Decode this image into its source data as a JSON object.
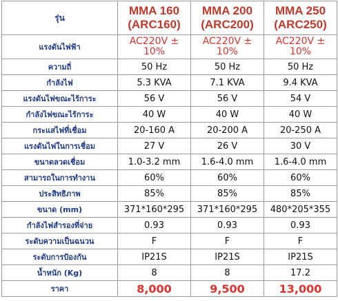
{
  "table": {
    "header": [
      "รุ่น",
      "MMA 160 (ARC160)",
      "MMA 200 (ARC200)",
      "MMA 250 (ARC250)"
    ],
    "rows": [
      [
        "แรงดันไฟฟ้า",
        "AC220V ± 10%",
        "AC220V ± 10%",
        "AC220V ± 10%"
      ],
      [
        "ความถี่",
        "50 Hz",
        "50 Hz",
        "50 Hz"
      ],
      [
        "กำลังไฟ",
        "5.3 KVA",
        "7.1 KVA",
        "9.4 KVA"
      ],
      [
        "แรงดันไฟขณะไร้การะ",
        "56 V",
        "56 V",
        "54 V"
      ],
      [
        "กำลังไฟขณะไร้การะ",
        "40 W",
        "40 W",
        "40 W"
      ],
      [
        "กระแสไฟที่เชื่อม",
        "20-160 A",
        "20-200 A",
        "20-250 A"
      ],
      [
        "แรงดันไฟในการเชื่อม",
        "27 V",
        "26 V",
        "30 V"
      ],
      [
        "ขนาดลวดเชื่อม",
        "1.0-3.2 mm",
        "1.6-4.0 mm",
        "1.6-4.0 mm"
      ],
      [
        "สามารถในการทำงาน",
        "60%",
        "60%",
        "60%"
      ],
      [
        "ประสิทธิภาพ",
        "85%",
        "85%",
        "85%"
      ],
      [
        "ขนาด (mm)",
        "371*160*295",
        "371*160*295",
        "480*205*355"
      ],
      [
        "กำลังไฟสำรองที่จ่าย",
        "0.93",
        "0.93",
        "0.93"
      ],
      [
        "ระดับความเป็นฉนวน",
        "F",
        "F",
        "F"
      ],
      [
        "ระดับการป้องกัน",
        "IP21S",
        "IP21S",
        "IP21S"
      ],
      [
        "น้ำหนัก (Kg)",
        "8",
        "8",
        "17.2"
      ],
      [
        "ราคา",
        "8,000",
        "9,500",
        "13,000"
      ]
    ]
  }
}
